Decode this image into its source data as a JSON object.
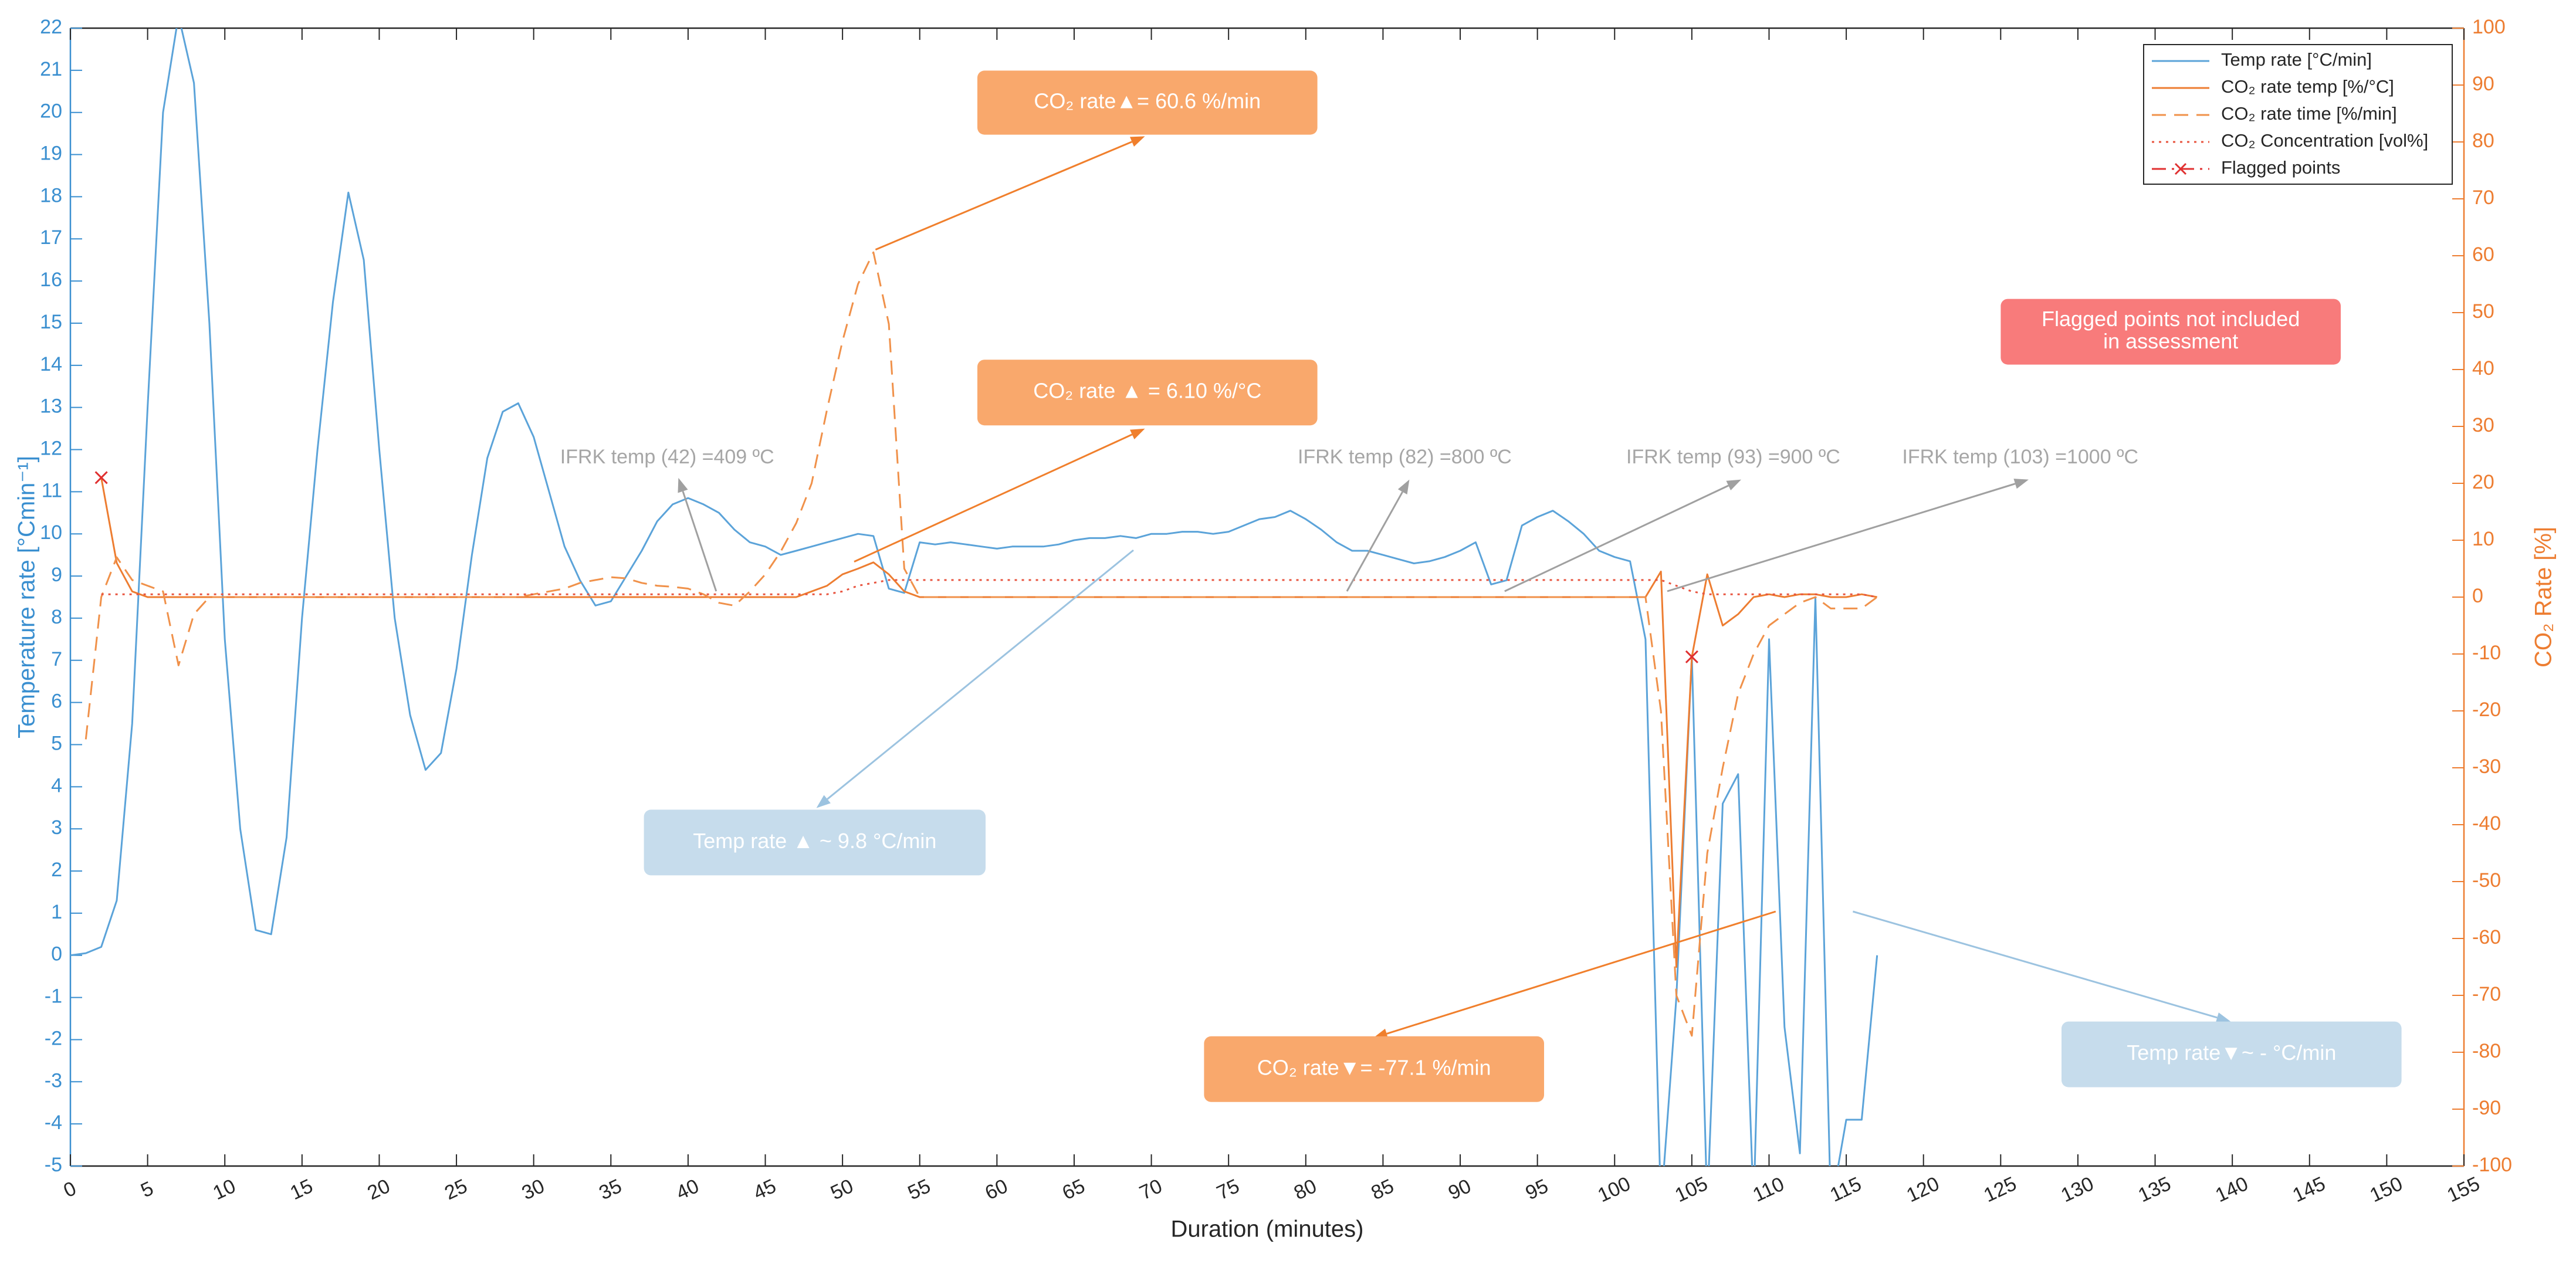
{
  "chart_data": {
    "type": "line",
    "xlabel": "Duration (minutes)",
    "ylabel": "Temperature rate [°Cmin⁻¹]",
    "y2label": "CO₂ Rate [%]",
    "xlim": [
      0,
      155
    ],
    "xticks": [
      0,
      5,
      10,
      15,
      20,
      25,
      30,
      35,
      40,
      45,
      50,
      55,
      60,
      65,
      70,
      75,
      80,
      85,
      90,
      95,
      100,
      105,
      110,
      115,
      120,
      125,
      130,
      135,
      140,
      145,
      150,
      155
    ],
    "ylim": [
      -5,
      22
    ],
    "yticks": [
      -5,
      -4,
      -3,
      -2,
      -1,
      0,
      1,
      2,
      3,
      4,
      5,
      6,
      7,
      8,
      9,
      10,
      11,
      12,
      13,
      14,
      15,
      16,
      17,
      18,
      19,
      20,
      21,
      22
    ],
    "y2lim": [
      -100,
      100
    ],
    "y2ticks": [
      -100,
      -90,
      -80,
      -70,
      -60,
      -50,
      -40,
      -30,
      -20,
      -10,
      0,
      10,
      20,
      30,
      40,
      50,
      60,
      70,
      80,
      90,
      100
    ],
    "grid": false,
    "legend": "upper right",
    "y_color": "#3a8fd0",
    "y2_color": "#ed7d31",
    "x": [
      0,
      1,
      2,
      3,
      4,
      5,
      6,
      7,
      8,
      9,
      10,
      11,
      12,
      13,
      14,
      15,
      16,
      17,
      18,
      19,
      20,
      21,
      22,
      23,
      24,
      25,
      26,
      27,
      28,
      29,
      30,
      31,
      32,
      33,
      34,
      35,
      36,
      37,
      38,
      39,
      40,
      41,
      42,
      43,
      44,
      45,
      46,
      47,
      48,
      49,
      50,
      51,
      52,
      53,
      54,
      55,
      56,
      57,
      58,
      59,
      60,
      61,
      62,
      63,
      64,
      65,
      66,
      67,
      68,
      69,
      70,
      71,
      72,
      73,
      74,
      75,
      76,
      77,
      78,
      79,
      80,
      81,
      82,
      83,
      84,
      85,
      86,
      87,
      88,
      89,
      90,
      91,
      92,
      93,
      94,
      95,
      96,
      97,
      98,
      99,
      100,
      101,
      102,
      103,
      104,
      105,
      106,
      107,
      108,
      109,
      110,
      111,
      112,
      113,
      114,
      115,
      116,
      117
    ],
    "series": [
      {
        "name": "Temp rate [°C/min]",
        "color": "#5ba3d9",
        "linestyle": "solid",
        "axis": "y",
        "values": [
          0,
          0.05,
          0.2,
          1.3,
          5.5,
          13,
          20,
          22.3,
          20.7,
          15,
          7.5,
          3,
          0.6,
          0.5,
          2.8,
          8,
          12,
          15.5,
          18.1,
          16.5,
          12,
          8,
          5.7,
          4.4,
          4.8,
          6.8,
          9.5,
          11.8,
          12.9,
          13.1,
          12.3,
          11,
          9.7,
          8.9,
          8.3,
          8.4,
          9,
          9.6,
          10.3,
          10.7,
          10.85,
          10.7,
          10.5,
          10.1,
          9.8,
          9.7,
          9.5,
          9.6,
          9.7,
          9.8,
          9.9,
          10,
          9.95,
          8.7,
          8.6,
          9.8,
          9.75,
          9.8,
          9.75,
          9.7,
          9.65,
          9.7,
          9.7,
          9.7,
          9.75,
          9.85,
          9.9,
          9.9,
          9.95,
          9.9,
          10,
          10,
          10.05,
          10.05,
          10,
          10.05,
          10.2,
          10.35,
          10.4,
          10.55,
          10.35,
          10.1,
          9.8,
          9.6,
          9.6,
          9.5,
          9.4,
          9.3,
          9.35,
          9.45,
          9.6,
          9.8,
          8.8,
          8.9,
          10.2,
          10.4,
          10.55,
          10.3,
          10,
          9.6,
          9.45,
          9.35,
          7.5,
          -6,
          -1,
          7.1,
          -6,
          3.6,
          4.3,
          -6,
          7.5,
          -1.7,
          -4.7,
          8.5,
          -6,
          -3.9,
          -3.9,
          0
        ]
      },
      {
        "name": "CO₂ rate temp [%/°C]",
        "color": "#ed7d31",
        "linestyle": "solid",
        "axis": "y2",
        "values": [
          null,
          null,
          21,
          6,
          1,
          0,
          0,
          0,
          0,
          0,
          0,
          0,
          0,
          0,
          0,
          0,
          0,
          0,
          0,
          0,
          0,
          0,
          0,
          0,
          0,
          0,
          0,
          0,
          0,
          0,
          0,
          0,
          0,
          0,
          0,
          0,
          0,
          0,
          0,
          0,
          0,
          0,
          0,
          0,
          0,
          0,
          0,
          0,
          1,
          2,
          4,
          5,
          6.1,
          4,
          1,
          0,
          0,
          0,
          0,
          0,
          0,
          0,
          0,
          0,
          0,
          0,
          0,
          0,
          0,
          0,
          0,
          0,
          0,
          0,
          0,
          0,
          0,
          0,
          0,
          0,
          0,
          0,
          0,
          0,
          0,
          0,
          0,
          0,
          0,
          0,
          0,
          0,
          0,
          0,
          0,
          0,
          0,
          0,
          0,
          0,
          0,
          0,
          0,
          4.5,
          -65,
          -10.5,
          4,
          -5,
          -3,
          0,
          0.5,
          0,
          0.5,
          0.5,
          0,
          0,
          0.5,
          0
        ]
      },
      {
        "name": "CO₂ rate time [%/min]",
        "color": "#f0914a",
        "linestyle": "dashed",
        "axis": "y2",
        "values": [
          null,
          -25,
          0,
          7,
          3,
          2,
          1,
          -12,
          -3,
          0,
          0,
          0,
          0,
          0,
          0,
          0,
          0,
          0,
          0,
          0,
          0,
          0,
          0,
          0,
          0,
          0,
          0,
          0,
          0,
          0,
          0.5,
          1,
          1.5,
          2.5,
          3,
          3.5,
          3.3,
          2.5,
          2,
          1.8,
          1.5,
          0.5,
          -1,
          -1.5,
          1,
          4,
          8,
          13,
          20,
          33,
          45,
          55,
          60.6,
          48,
          5,
          0,
          0,
          0,
          0,
          0,
          0,
          0,
          0,
          0,
          0,
          0,
          0,
          0,
          0,
          0,
          0,
          0,
          0,
          0,
          0,
          0,
          0,
          0,
          0,
          0,
          0,
          0,
          0,
          0,
          0,
          0,
          0,
          0,
          0,
          0,
          0,
          0,
          0,
          0,
          0,
          0,
          0,
          0,
          0,
          0,
          0,
          0,
          0,
          -20,
          -70,
          -77.1,
          -45,
          -30,
          -17,
          -10,
          -5,
          -3,
          -1,
          0,
          -2,
          -2,
          -2,
          0
        ]
      },
      {
        "name": "CO₂ Concentration [vol%]",
        "color": "#e8543f",
        "linestyle": "dotted",
        "axis": "y2",
        "values": [
          null,
          null,
          0.5,
          0.5,
          0.5,
          0.5,
          0.5,
          0.5,
          0.5,
          0.5,
          0.5,
          0.5,
          0.5,
          0.5,
          0.5,
          0.5,
          0.5,
          0.5,
          0.5,
          0.5,
          0.5,
          0.5,
          0.5,
          0.5,
          0.5,
          0.5,
          0.5,
          0.5,
          0.5,
          0.5,
          0.5,
          0.5,
          0.5,
          0.5,
          0.5,
          0.5,
          0.5,
          0.5,
          0.5,
          0.5,
          0.5,
          0.5,
          0.5,
          0.5,
          0.5,
          0.5,
          0.5,
          0.5,
          0.5,
          0.5,
          1,
          2,
          2.5,
          3,
          3,
          3,
          3,
          3,
          3,
          3,
          3,
          3,
          3,
          3,
          3,
          3,
          3,
          3,
          3,
          3,
          3,
          3,
          3,
          3,
          3,
          3,
          3,
          3,
          3,
          3,
          3,
          3,
          3,
          3,
          3,
          3,
          3,
          3,
          3,
          3,
          3,
          3,
          3,
          3,
          3,
          3,
          3,
          3,
          3,
          3,
          3,
          3,
          3,
          3,
          2,
          1,
          0.5,
          0.5,
          0.5,
          0.5,
          0.5,
          0.5,
          0.5,
          0.5,
          0.5,
          0.5,
          0.5,
          0
        ]
      },
      {
        "name": "Flagged points",
        "color": "#e03030",
        "linestyle": "dashdot",
        "marker": "x",
        "axis": "y2",
        "x": [
          2,
          105
        ],
        "values": [
          21,
          -10.5
        ]
      }
    ],
    "annotations": [
      {
        "text": "CO₂ rate▲= 60.6 %/min",
        "color": "#f9a86c",
        "arrow_color": "#f07f2c"
      },
      {
        "text": "CO₂ rate ▲ = 6.10 %/°C",
        "color": "#f9a86c",
        "arrow_color": "#f07f2c"
      },
      {
        "text": "Temp rate ▲ ~ 9.8 °C/min",
        "color": "#c6dcec",
        "arrow_color": "#9cc3e0"
      },
      {
        "text": "CO₂ rate▼= -77.1 %/min",
        "color": "#f9a86c",
        "arrow_color": "#f07f2c"
      },
      {
        "text": "Temp rate▼~ - °C/min",
        "color": "#c6dcec",
        "arrow_color": "#9cc3e0"
      },
      {
        "lines": [
          "Flagged points not included",
          "in assessment"
        ],
        "color": "#f87b7b"
      },
      {
        "text": "IFRK temp (42) =409 ºC",
        "color": "#a6a6a6",
        "arrow_color": "#a0a0a0"
      },
      {
        "text": "IFRK temp (82) =800 ºC",
        "color": "#a6a6a6",
        "arrow_color": "#a0a0a0"
      },
      {
        "text": "IFRK temp (93) =900 ºC",
        "color": "#a6a6a6",
        "arrow_color": "#a0a0a0"
      },
      {
        "text": "IFRK temp (103) =1000 ºC",
        "color": "#a6a6a6",
        "arrow_color": "#a0a0a0"
      }
    ]
  }
}
